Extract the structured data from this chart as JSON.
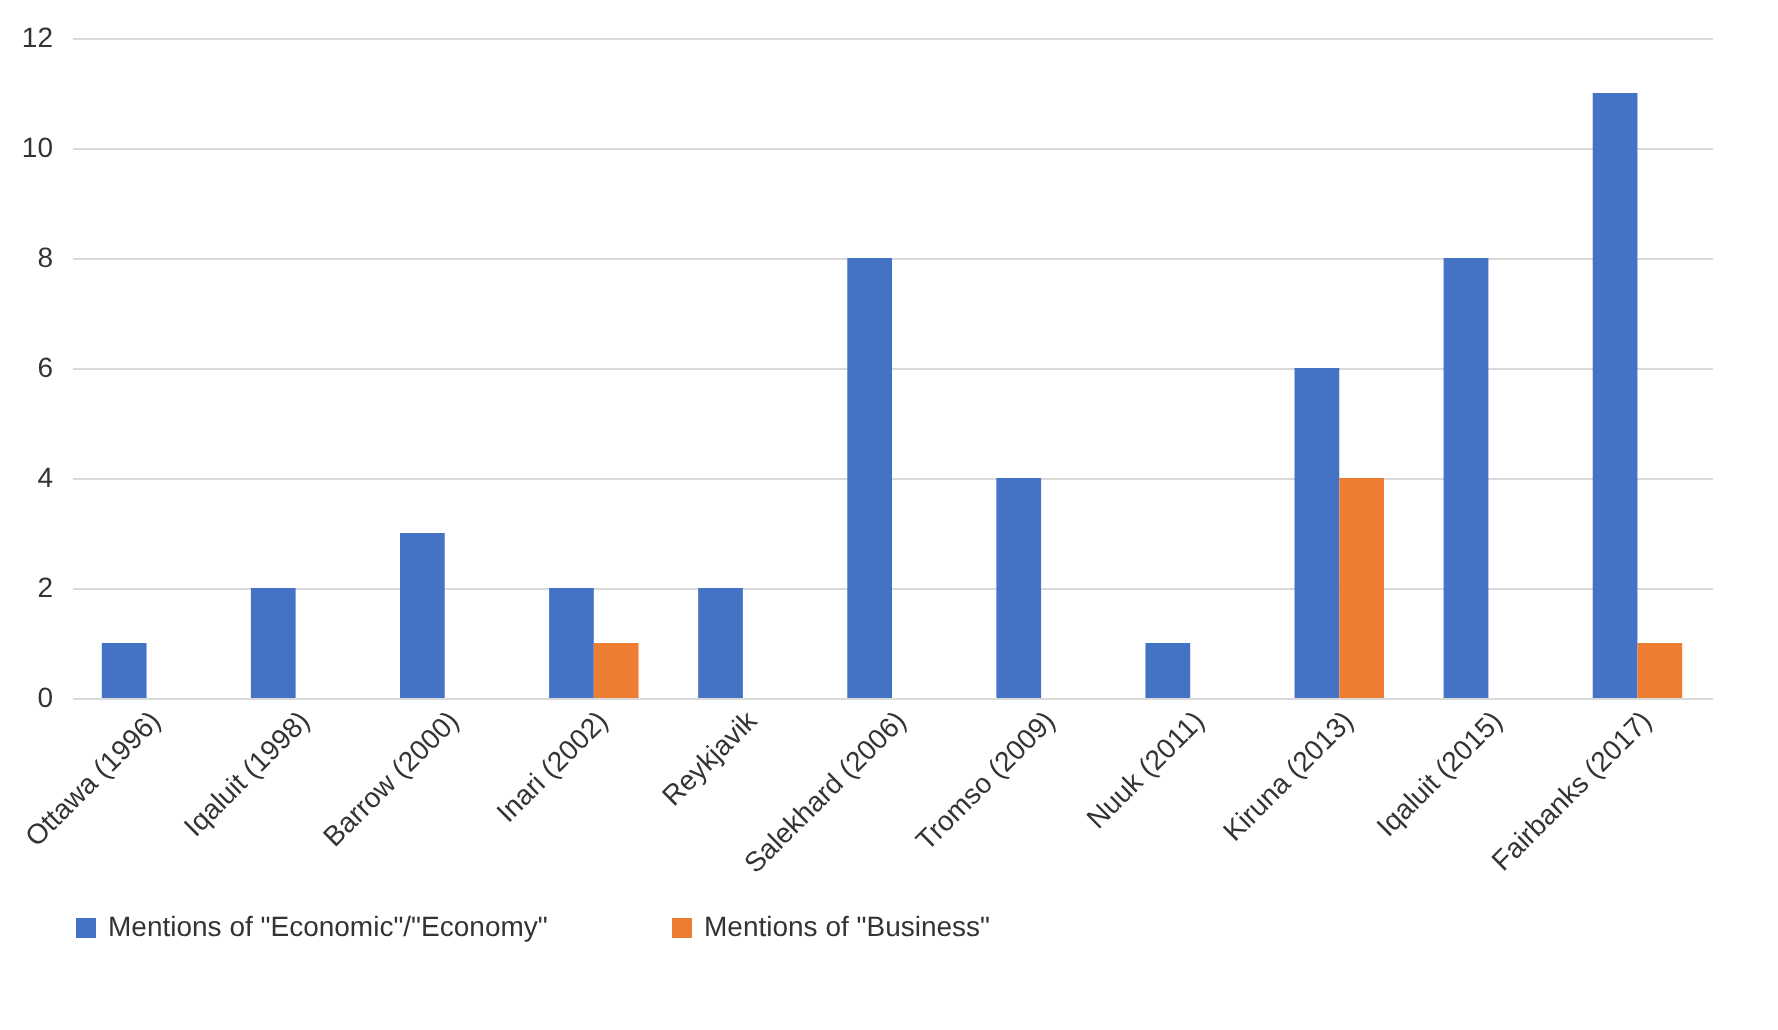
{
  "chart_data": {
    "type": "bar",
    "categories": [
      "Ottawa (1996)",
      "Iqaluit (1998)",
      "Barrow (2000)",
      "Inari (2002)",
      "Reykjavik",
      "Salekhard (2006)",
      "Tromso (2009)",
      "Nuuk (2011)",
      "Kiruna (2013)",
      "Iqaluit (2015)",
      "Fairbanks (2017)"
    ],
    "series": [
      {
        "name": "Mentions of \"Economic\"/\"Economy\"",
        "color": "#4472c4",
        "values": [
          1,
          2,
          3,
          2,
          2,
          8,
          4,
          1,
          6,
          8,
          11
        ]
      },
      {
        "name": "Mentions of \"Business\"",
        "color": "#ed7d31",
        "values": [
          null,
          null,
          null,
          1,
          null,
          null,
          null,
          null,
          4,
          null,
          1
        ]
      }
    ],
    "ylim": [
      0,
      12
    ],
    "yticks": [
      0,
      2,
      4,
      6,
      8,
      10,
      12
    ],
    "grid": "y",
    "legend": "bottom"
  }
}
